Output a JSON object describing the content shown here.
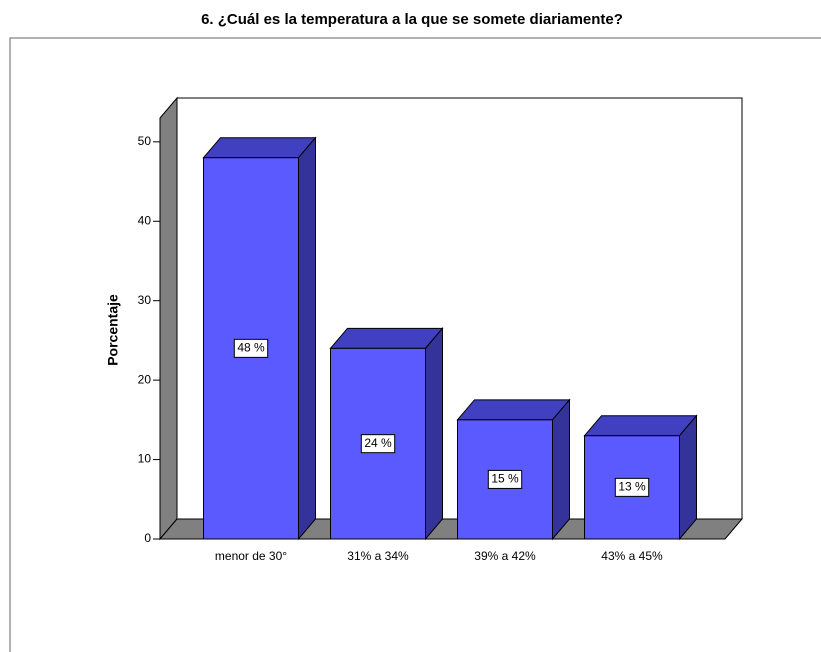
{
  "chart_data": {
    "type": "bar3d",
    "title": "6. ¿Cuál es la temperatura a la que se somete diariamente?",
    "y_label": "Porcentaje",
    "categories": [
      "menor de 30°",
      "31% a 34%",
      "39% a 42%",
      "43% a 45%"
    ],
    "values": [
      48,
      24,
      15,
      13
    ],
    "value_labels": [
      "48 %",
      "24 %",
      "15 %",
      "13 %"
    ],
    "color": "#5a5aff",
    "ylim": [
      0,
      53
    ],
    "yticks": [
      0,
      10,
      20,
      30,
      40,
      50
    ]
  }
}
